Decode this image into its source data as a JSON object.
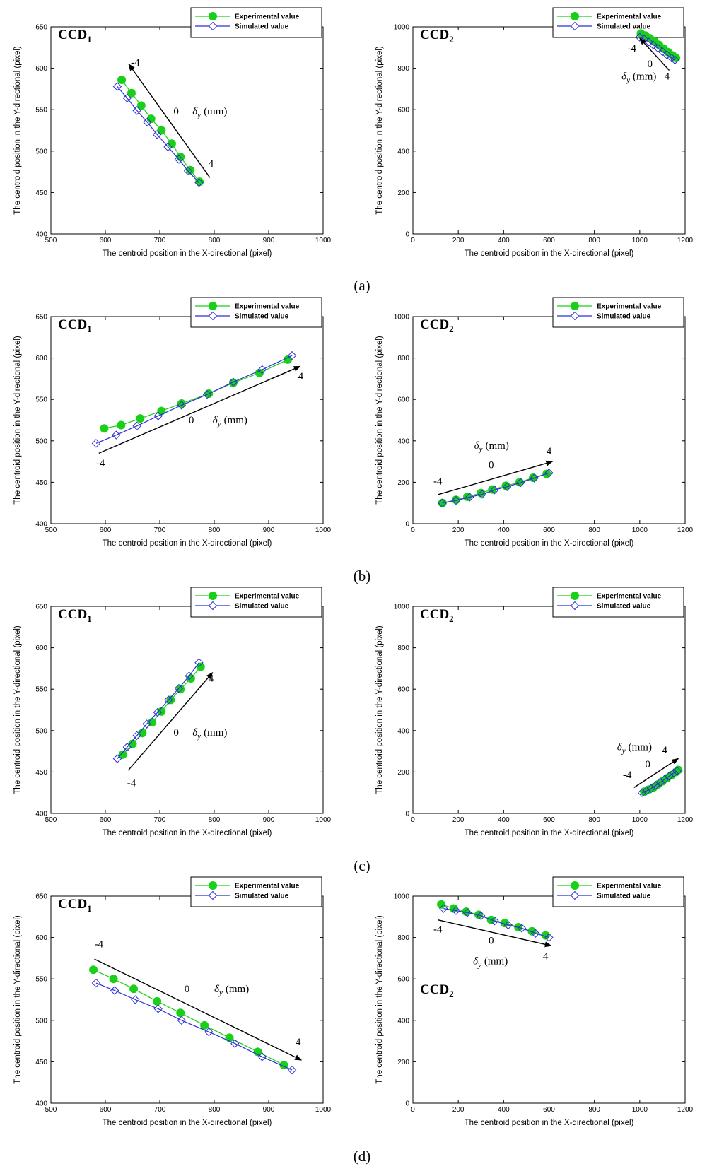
{
  "chart_data": [
    {
      "panel": "a",
      "camera": "CCD",
      "camera_sub": "1",
      "type": "line",
      "xlim": [
        500,
        1000
      ],
      "ylim": [
        400,
        650
      ],
      "xticks": [
        500,
        600,
        700,
        800,
        900,
        1000
      ],
      "yticks": [
        400,
        450,
        500,
        550,
        600,
        650
      ],
      "xlabel": "The centroid position in the X-directional (pixel)",
      "ylabel": "The centroid position in the Y-directional (pixel)",
      "legend": "top-right",
      "series": [
        {
          "name": "Experimental value",
          "color": "#18d018",
          "marker": "circle",
          "x": [
            630,
            648,
            666,
            684,
            703,
            722,
            738,
            756,
            773
          ],
          "y": [
            586,
            570,
            555,
            539,
            525,
            509,
            493,
            477,
            463
          ]
        },
        {
          "name": "Simulated value",
          "color": "#2e2ed8",
          "marker": "diamond",
          "x": [
            622,
            640,
            658,
            677,
            695,
            715,
            735,
            752,
            772
          ],
          "y": [
            578,
            564,
            549,
            535,
            520,
            505,
            490,
            476,
            462
          ]
        }
      ],
      "arrow": {
        "from": [
          792,
          468
        ],
        "to": [
          643,
          605
        ]
      },
      "labels": [
        {
          "text": "-4",
          "x": 655,
          "y": 603
        },
        {
          "text": "0",
          "x": 730,
          "y": 544
        },
        {
          "text": "4",
          "x": 794,
          "y": 481
        }
      ],
      "delta_label": {
        "x": 760,
        "y": 544
      }
    },
    {
      "panel": "a",
      "camera": "CCD",
      "camera_sub": "2",
      "type": "line",
      "xlim": [
        0,
        1200
      ],
      "ylim": [
        0,
        1000
      ],
      "xticks": [
        0,
        200,
        400,
        600,
        800,
        1000,
        1200
      ],
      "yticks": [
        0,
        200,
        400,
        600,
        800,
        1000
      ],
      "xlabel": "The centroid position in the X-directional (pixel)",
      "ylabel": "The centroid position in the Y-directional (pixel)",
      "legend": "top-right",
      "series": [
        {
          "name": "Experimental value",
          "color": "#18d018",
          "marker": "circle",
          "x": [
            1005,
            1025,
            1045,
            1065,
            1085,
            1105,
            1125,
            1145,
            1160
          ],
          "y": [
            968,
            958,
            945,
            930,
            913,
            895,
            878,
            862,
            850
          ]
        },
        {
          "name": "Simulated value",
          "color": "#2e2ed8",
          "marker": "diamond",
          "x": [
            1000,
            1020,
            1040,
            1060,
            1080,
            1100,
            1120,
            1140,
            1155
          ],
          "y": [
            950,
            940,
            927,
            912,
            897,
            880,
            865,
            850,
            840
          ]
        }
      ],
      "arrow": {
        "from": [
          1130,
          790
        ],
        "to": [
          1000,
          945
        ]
      },
      "labels": [
        {
          "text": "-4",
          "x": 965,
          "y": 880
        },
        {
          "text": "0",
          "x": 1045,
          "y": 805
        },
        {
          "text": "4",
          "x": 1120,
          "y": 745
        }
      ],
      "delta_label": {
        "x": 920,
        "y": 745
      }
    },
    {
      "panel": "b",
      "camera": "CCD",
      "camera_sub": "1",
      "type": "line",
      "xlim": [
        500,
        1000
      ],
      "ylim": [
        400,
        650
      ],
      "xticks": [
        500,
        600,
        700,
        800,
        900,
        1000
      ],
      "yticks": [
        400,
        450,
        500,
        550,
        600,
        650
      ],
      "xlabel": "The centroid position in the X-directional (pixel)",
      "ylabel": "The centroid position in the Y-directional (pixel)",
      "legend": "top-right",
      "series": [
        {
          "name": "Experimental value",
          "color": "#18d018",
          "marker": "circle",
          "x": [
            598,
            629,
            664,
            703,
            740,
            790,
            835,
            883,
            935
          ],
          "y": [
            515,
            519,
            527,
            536,
            545,
            557,
            570,
            582,
            598
          ]
        },
        {
          "name": "Simulated value",
          "color": "#2e2ed8",
          "marker": "diamond",
          "x": [
            583,
            620,
            658,
            697,
            740,
            787,
            835,
            888,
            943
          ],
          "y": [
            497,
            507,
            518,
            530,
            543,
            556,
            571,
            586,
            603
          ]
        }
      ],
      "arrow": {
        "from": [
          588,
          485
        ],
        "to": [
          958,
          590
        ]
      },
      "labels": [
        {
          "text": "-4",
          "x": 591,
          "y": 469
        },
        {
          "text": "0",
          "x": 758,
          "y": 521
        },
        {
          "text": "4",
          "x": 959,
          "y": 574
        }
      ],
      "delta_label": {
        "x": 797,
        "y": 521
      }
    },
    {
      "panel": "b",
      "camera": "CCD",
      "camera_sub": "2",
      "type": "line",
      "xlim": [
        0,
        1200
      ],
      "ylim": [
        0,
        1000
      ],
      "xticks": [
        0,
        200,
        400,
        600,
        800,
        1000,
        1200
      ],
      "yticks": [
        0,
        200,
        400,
        600,
        800,
        1000
      ],
      "xlabel": "The centroid position in the X-directional (pixel)",
      "ylabel": "The centroid position in the Y-directional (pixel)",
      "legend": "top-right",
      "series": [
        {
          "name": "Experimental value",
          "color": "#18d018",
          "marker": "circle",
          "x": [
            130,
            190,
            240,
            300,
            350,
            410,
            470,
            530,
            590
          ],
          "y": [
            100,
            115,
            130,
            148,
            165,
            183,
            200,
            222,
            240
          ]
        },
        {
          "name": "Simulated value",
          "color": "#2e2ed8",
          "marker": "diamond",
          "x": [
            130,
            190,
            250,
            305,
            360,
            415,
            475,
            535,
            600
          ],
          "y": [
            100,
            112,
            128,
            142,
            163,
            178,
            198,
            220,
            245
          ]
        }
      ],
      "arrow": {
        "from": [
          110,
          140
        ],
        "to": [
          615,
          300
        ]
      },
      "labels": [
        {
          "text": "-4",
          "x": 110,
          "y": 190
        },
        {
          "text": "0",
          "x": 345,
          "y": 268
        },
        {
          "text": "4",
          "x": 600,
          "y": 335
        }
      ],
      "delta_label": {
        "x": 270,
        "y": 362
      }
    },
    {
      "panel": "c",
      "camera": "CCD",
      "camera_sub": "1",
      "type": "line",
      "xlim": [
        500,
        1000
      ],
      "ylim": [
        400,
        650
      ],
      "xticks": [
        500,
        600,
        700,
        800,
        900,
        1000
      ],
      "yticks": [
        400,
        450,
        500,
        550,
        600,
        650
      ],
      "xlabel": "The centroid position in the X-directional (pixel)",
      "ylabel": "The centroid position in the Y-directional (pixel)",
      "legend": "top-right",
      "series": [
        {
          "name": "Experimental value",
          "color": "#18d018",
          "marker": "circle",
          "x": [
            632,
            650,
            668,
            686,
            703,
            720,
            738,
            757,
            775
          ],
          "y": [
            471,
            484,
            497,
            510,
            523,
            537,
            550,
            563,
            577
          ]
        },
        {
          "name": "Simulated value",
          "color": "#2e2ed8",
          "marker": "diamond",
          "x": [
            622,
            640,
            658,
            676,
            696,
            716,
            735,
            754,
            772
          ],
          "y": [
            466,
            480,
            494,
            508,
            522,
            537,
            551,
            566,
            582
          ]
        }
      ],
      "arrow": {
        "from": [
          642,
          452
        ],
        "to": [
          797,
          570
        ]
      },
      "labels": [
        {
          "text": "-4",
          "x": 648,
          "y": 433
        },
        {
          "text": "0",
          "x": 730,
          "y": 494
        },
        {
          "text": "4",
          "x": 794,
          "y": 559
        }
      ],
      "delta_label": {
        "x": 760,
        "y": 494
      }
    },
    {
      "panel": "c",
      "camera": "CCD",
      "camera_sub": "2",
      "type": "line",
      "xlim": [
        0,
        1200
      ],
      "ylim": [
        0,
        1000
      ],
      "xticks": [
        0,
        200,
        400,
        600,
        800,
        1000,
        1200
      ],
      "yticks": [
        0,
        200,
        400,
        600,
        800,
        1000
      ],
      "xlabel": "The centroid position in the X-directional (pixel)",
      "ylabel": "The centroid position in the Y-directional (pixel)",
      "legend": "top-right",
      "series": [
        {
          "name": "Experimental value",
          "color": "#18d018",
          "marker": "circle",
          "x": [
            1020,
            1040,
            1060,
            1080,
            1100,
            1120,
            1140,
            1160,
            1170
          ],
          "y": [
            105,
            115,
            125,
            140,
            155,
            170,
            185,
            200,
            210
          ]
        },
        {
          "name": "Simulated value",
          "color": "#2e2ed8",
          "marker": "diamond",
          "x": [
            1010,
            1030,
            1050,
            1070,
            1090,
            1110,
            1130,
            1150,
            1165
          ],
          "y": [
            100,
            110,
            120,
            135,
            150,
            165,
            180,
            195,
            205
          ]
        }
      ],
      "arrow": {
        "from": [
          975,
          125
        ],
        "to": [
          1170,
          265
        ]
      },
      "labels": [
        {
          "text": "-4",
          "x": 945,
          "y": 170
        },
        {
          "text": "0",
          "x": 1035,
          "y": 222
        },
        {
          "text": "4",
          "x": 1110,
          "y": 290
        }
      ],
      "delta_label": {
        "x": 900,
        "y": 305
      }
    },
    {
      "panel": "d",
      "camera": "CCD",
      "camera_sub": "1",
      "type": "line",
      "xlim": [
        500,
        1000
      ],
      "ylim": [
        400,
        650
      ],
      "xticks": [
        500,
        600,
        700,
        800,
        900,
        1000
      ],
      "yticks": [
        400,
        450,
        500,
        550,
        600,
        650
      ],
      "xlabel": "The centroid position in the X-directional (pixel)",
      "ylabel": "The centroid position in the Y-directional (pixel)",
      "legend": "top-right",
      "series": [
        {
          "name": "Experimental value",
          "color": "#18d018",
          "marker": "circle",
          "x": [
            578,
            615,
            652,
            695,
            738,
            782,
            828,
            880,
            928
          ],
          "y": [
            561,
            550,
            538,
            523,
            509,
            494,
            479,
            462,
            446
          ]
        },
        {
          "name": "Simulated value",
          "color": "#2e2ed8",
          "marker": "diamond",
          "x": [
            583,
            617,
            655,
            697,
            740,
            790,
            838,
            888,
            943
          ],
          "y": [
            545,
            536,
            525,
            514,
            500,
            486,
            472,
            456,
            440
          ]
        }
      ],
      "arrow": {
        "from": [
          580,
          574
        ],
        "to": [
          960,
          452
        ]
      },
      "labels": [
        {
          "text": "-4",
          "x": 588,
          "y": 588
        },
        {
          "text": "0",
          "x": 750,
          "y": 534
        },
        {
          "text": "4",
          "x": 954,
          "y": 470
        }
      ],
      "delta_label": {
        "x": 800,
        "y": 534
      }
    },
    {
      "panel": "d",
      "camera": "CCD",
      "camera_sub": "2",
      "type": "line",
      "xlim": [
        0,
        1200
      ],
      "ylim": [
        0,
        1000
      ],
      "xticks": [
        0,
        200,
        400,
        600,
        800,
        1000,
        1200
      ],
      "yticks": [
        0,
        200,
        400,
        600,
        800,
        1000
      ],
      "xlabel": "The centroid position in the X-directional (pixel)",
      "ylabel": "The centroid position in the Y-directional (pixel)",
      "legend": "top-right",
      "series": [
        {
          "name": "Experimental value",
          "color": "#18d018",
          "marker": "circle",
          "x": [
            125,
            180,
            235,
            290,
            345,
            405,
            465,
            525,
            585
          ],
          "y": [
            960,
            940,
            925,
            910,
            885,
            870,
            850,
            830,
            810
          ]
        },
        {
          "name": "Simulated value",
          "color": "#2e2ed8",
          "marker": "diamond",
          "x": [
            135,
            190,
            240,
            300,
            360,
            420,
            480,
            540,
            600
          ],
          "y": [
            940,
            930,
            920,
            905,
            880,
            860,
            845,
            820,
            800
          ]
        }
      ],
      "arrow": {
        "from": [
          110,
          885
        ],
        "to": [
          610,
          760
        ]
      },
      "labels": [
        {
          "text": "-4",
          "x": 110,
          "y": 825
        },
        {
          "text": "0",
          "x": 345,
          "y": 770
        },
        {
          "text": "4",
          "x": 585,
          "y": 695
        }
      ],
      "delta_label": {
        "x": 265,
        "y": 670
      },
      "ccd_label_pos": "lower-left"
    }
  ],
  "captions": [
    "(a)",
    "(b)",
    "(c)",
    "(d)"
  ],
  "delta_symbol": "δ",
  "delta_sub": "y",
  "delta_unit": "(mm)"
}
